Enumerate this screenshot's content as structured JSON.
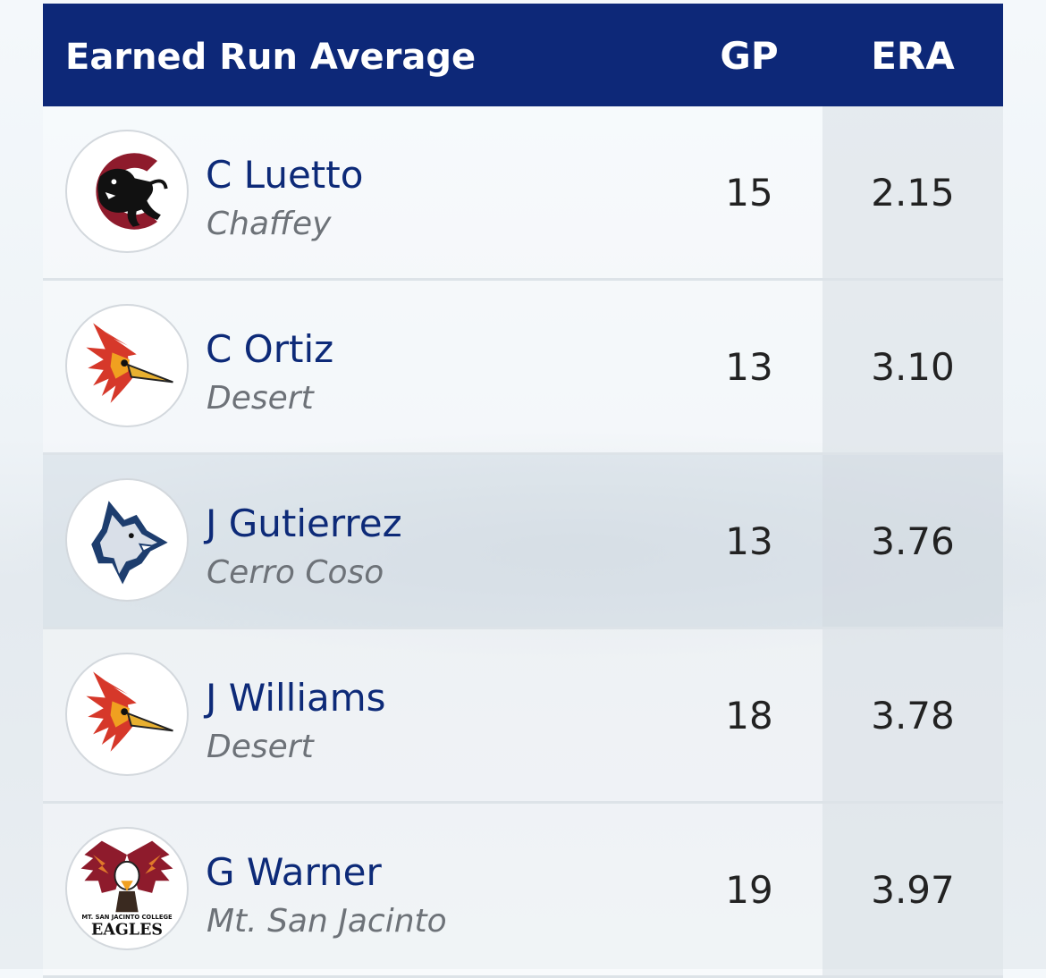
{
  "header": {
    "title": "Earned Run Average",
    "col_gp": "GP",
    "col_era": "ERA",
    "bg_color": "#0d2878"
  },
  "rows": [
    {
      "name": "C Luetto",
      "team": "Chaffey",
      "gp": "15",
      "era": "2.15",
      "logo": "panther-logo"
    },
    {
      "name": "C Ortiz",
      "team": "Desert",
      "gp": "13",
      "era": "3.10",
      "logo": "roadrunner-logo"
    },
    {
      "name": "J Gutierrez",
      "team": "Cerro Coso",
      "gp": "13",
      "era": "3.76",
      "logo": "coyote-logo"
    },
    {
      "name": "J Williams",
      "team": "Desert",
      "gp": "18",
      "era": "3.78",
      "logo": "roadrunner-logo"
    },
    {
      "name": "G Warner",
      "team": "Mt. San Jacinto",
      "gp": "19",
      "era": "3.97",
      "logo": "eagle-logo",
      "logo_text": [
        "MT. SAN JACINTO COLLEGE",
        "EAGLES"
      ]
    }
  ]
}
